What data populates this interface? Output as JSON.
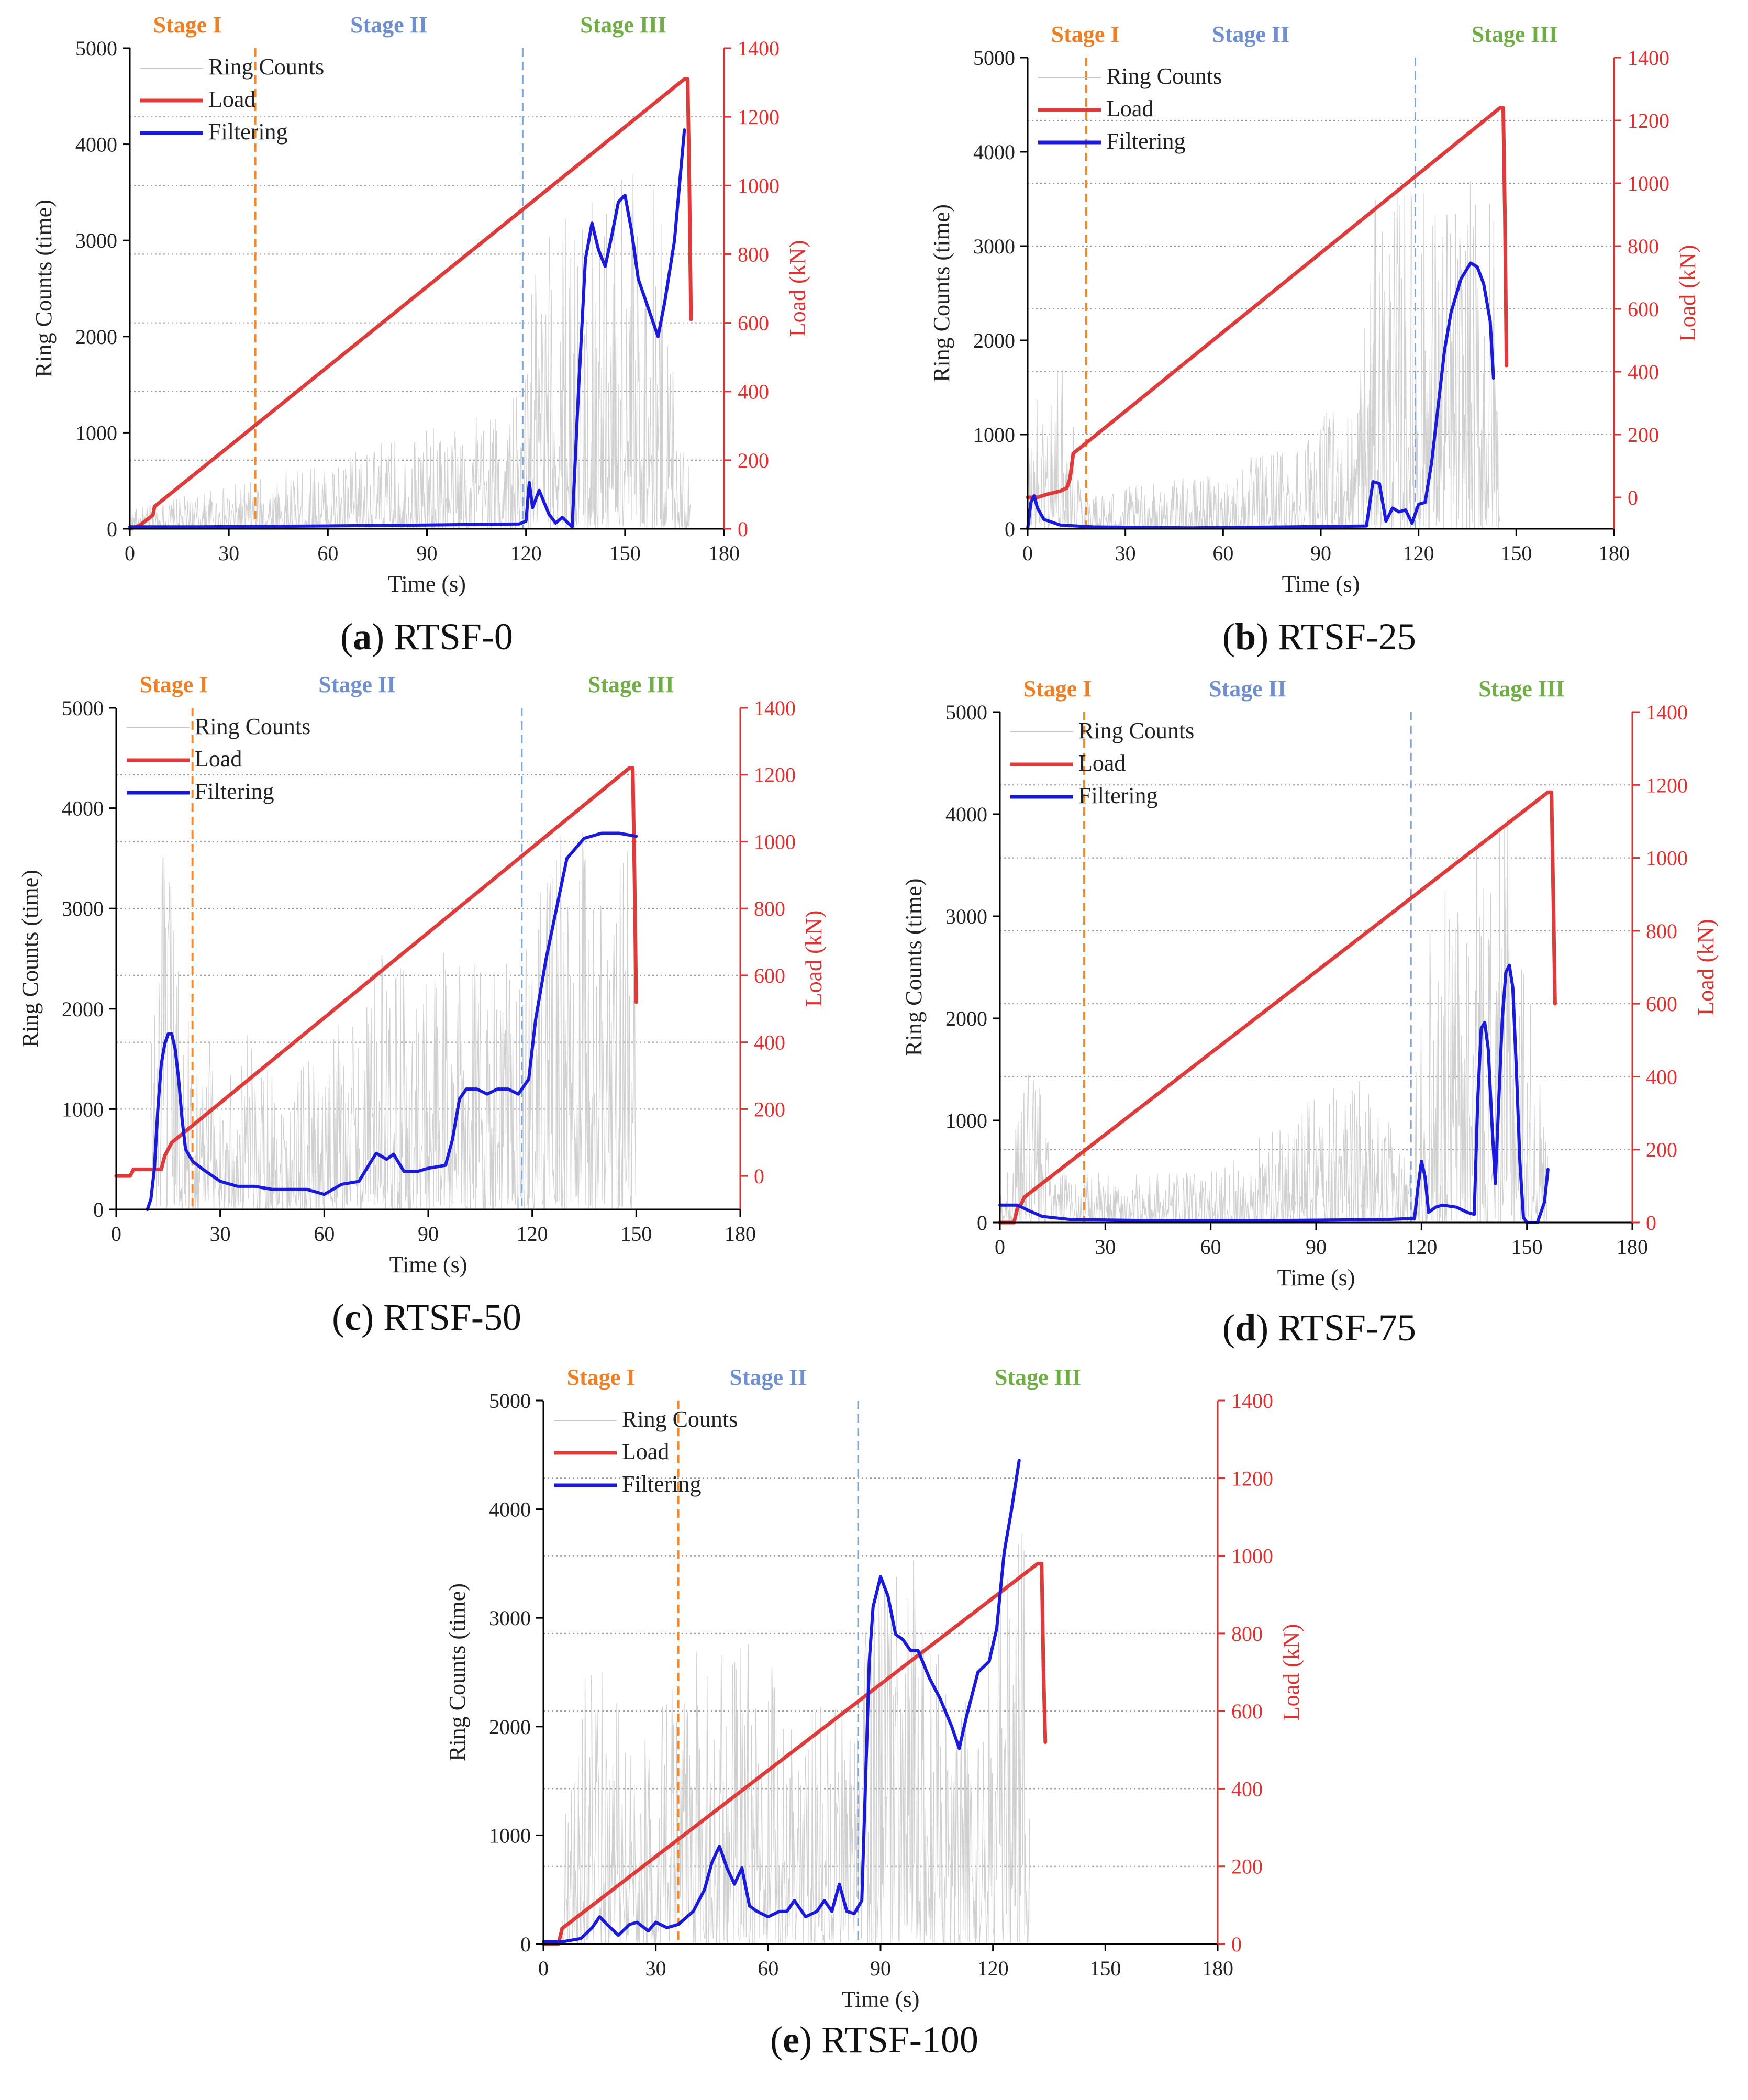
{
  "figure": {
    "legend": [
      "Ring Counts",
      "Load",
      "Filtering"
    ],
    "stage_labels": [
      "Stage I",
      "Stage II",
      "Stage III"
    ],
    "colors": {
      "ring_counts": "#c8c8c8",
      "load": "#e03b3b",
      "filtering": "#1a1adc",
      "stage1_line": "#ef8a2e",
      "stage2_line": "#7fa5d6",
      "stage1_text": "#ef7f25",
      "stage2_text": "#6f8fcf",
      "stage3_text": "#70ad47"
    }
  },
  "chart_data": [
    {
      "type": "line",
      "panel_letter": "a",
      "specimen": "RTSF-0",
      "xlabel": "Time (s)",
      "ylabel": "Ring Counts (time)",
      "y2label": "Load (kN)",
      "xlim": [
        0,
        180
      ],
      "ylim": [
        0,
        5000
      ],
      "y2lim": [
        0,
        1400
      ],
      "xticks": [
        0,
        30,
        60,
        90,
        120,
        150,
        180
      ],
      "yticks": [
        0,
        1000,
        2000,
        3000,
        4000,
        5000
      ],
      "y2ticks": [
        0,
        200,
        400,
        600,
        800,
        1000,
        1200,
        1400
      ],
      "stage_boundaries": [
        38,
        119
      ],
      "series": [
        {
          "name": "Load",
          "axis": "right",
          "x": [
            0,
            3,
            7,
            7.5,
            168,
            169,
            169.5,
            170
          ],
          "y": [
            0,
            10,
            40,
            65,
            1310,
            1310,
            1000,
            610
          ]
        },
        {
          "name": "Filtering",
          "axis": "left",
          "x": [
            0,
            20,
            60,
            90,
            118,
            120,
            121,
            122,
            124,
            127,
            129,
            131,
            134,
            136,
            138,
            140,
            142,
            144,
            146,
            148,
            150,
            152,
            154,
            157,
            160,
            162,
            165,
            168
          ],
          "y": [
            20,
            20,
            30,
            40,
            50,
            80,
            480,
            220,
            400,
            150,
            60,
            120,
            20,
            1500,
            2800,
            3180,
            2900,
            2730,
            3050,
            3400,
            3470,
            3100,
            2600,
            2300,
            2000,
            2350,
            3000,
            4150
          ]
        }
      ],
      "ring_counts_noise": {
        "x_range": [
          0,
          170
        ],
        "envelope": [
          [
            0,
            200
          ],
          [
            60,
            700
          ],
          [
            119,
            1400
          ],
          [
            122,
            2800
          ],
          [
            135,
            3600
          ],
          [
            150,
            4000
          ],
          [
            160,
            3600
          ],
          [
            170,
            400
          ]
        ]
      }
    },
    {
      "type": "line",
      "panel_letter": "b",
      "specimen": "RTSF-25",
      "xlabel": "Time (s)",
      "ylabel": "Ring Counts (time)",
      "y2label": "Load (kN)",
      "xlim": [
        0,
        180
      ],
      "ylim": [
        0,
        5000
      ],
      "y2lim": [
        -100,
        1400
      ],
      "xticks": [
        0,
        30,
        60,
        90,
        120,
        150,
        180
      ],
      "yticks": [
        0,
        1000,
        2000,
        3000,
        4000,
        5000
      ],
      "y2ticks": [
        0,
        200,
        400,
        600,
        800,
        1000,
        1200,
        1400
      ],
      "stage_boundaries": [
        18,
        119
      ],
      "series": [
        {
          "name": "Load",
          "axis": "right",
          "x": [
            0,
            3,
            6,
            10,
            12,
            13,
            14,
            145,
            146,
            146.5,
            147
          ],
          "y": [
            0,
            0,
            10,
            20,
            30,
            60,
            140,
            1240,
            1240,
            900,
            420
          ]
        },
        {
          "name": "Filtering",
          "axis": "left",
          "x": [
            0,
            1,
            2,
            3,
            5,
            10,
            20,
            50,
            80,
            104,
            106,
            108,
            110,
            112,
            114,
            116,
            118,
            120,
            122,
            124,
            126,
            128,
            130,
            133,
            136,
            138,
            140,
            142,
            143
          ],
          "y": [
            0,
            280,
            350,
            220,
            100,
            40,
            20,
            10,
            20,
            30,
            500,
            480,
            80,
            220,
            180,
            200,
            60,
            260,
            280,
            700,
            1300,
            1900,
            2300,
            2650,
            2820,
            2780,
            2600,
            2200,
            1600
          ]
        }
      ],
      "ring_counts_noise": {
        "x_range": [
          0,
          145
        ],
        "envelope": [
          [
            0,
            1200
          ],
          [
            10,
            1800
          ],
          [
            20,
            400
          ],
          [
            60,
            600
          ],
          [
            100,
            1400
          ],
          [
            107,
            3600
          ],
          [
            118,
            3800
          ],
          [
            130,
            3600
          ],
          [
            143,
            3800
          ],
          [
            145,
            800
          ]
        ]
      }
    },
    {
      "type": "line",
      "panel_letter": "c",
      "specimen": "RTSF-50",
      "xlabel": "Time (s)",
      "ylabel": "Ring Counts (time)",
      "y2label": "Load (kN)",
      "xlim": [
        0,
        180
      ],
      "ylim": [
        0,
        5000
      ],
      "y2lim": [
        -100,
        1400
      ],
      "xticks": [
        0,
        30,
        60,
        90,
        120,
        150,
        180
      ],
      "yticks": [
        0,
        1000,
        2000,
        3000,
        4000,
        5000
      ],
      "y2ticks": [
        0,
        200,
        400,
        600,
        800,
        1000,
        1200,
        1400
      ],
      "stage_boundaries": [
        22,
        117
      ],
      "series": [
        {
          "name": "Load",
          "axis": "right",
          "x": [
            0,
            4,
            5,
            13,
            14,
            16,
            148,
            149,
            149.5,
            150
          ],
          "y": [
            0,
            0,
            20,
            20,
            60,
            100,
            1220,
            1220,
            900,
            520
          ]
        },
        {
          "name": "Filtering",
          "axis": "left",
          "x": [
            9,
            10,
            11,
            12,
            13,
            14,
            15,
            16,
            17,
            18,
            19,
            20,
            22,
            25,
            30,
            35,
            40,
            45,
            50,
            55,
            60,
            65,
            70,
            73,
            75,
            78,
            80,
            83,
            87,
            90,
            95,
            97,
            99,
            101,
            104,
            107,
            110,
            113,
            116,
            119,
            121,
            124,
            127,
            130,
            135,
            140,
            145,
            150
          ],
          "y": [
            0,
            100,
            400,
            1000,
            1450,
            1650,
            1750,
            1750,
            1600,
            1300,
            900,
            600,
            480,
            400,
            280,
            230,
            230,
            200,
            200,
            200,
            150,
            250,
            280,
            450,
            560,
            500,
            550,
            380,
            380,
            410,
            440,
            700,
            1100,
            1200,
            1200,
            1150,
            1200,
            1200,
            1150,
            1300,
            1900,
            2500,
            3000,
            3500,
            3700,
            3750,
            3750,
            3720
          ]
        }
      ],
      "ring_counts_noise": {
        "x_range": [
          10,
          150
        ],
        "envelope": [
          [
            10,
            2800
          ],
          [
            14,
            3900
          ],
          [
            20,
            2000
          ],
          [
            30,
            1800
          ],
          [
            60,
            1600
          ],
          [
            75,
            2700
          ],
          [
            90,
            2400
          ],
          [
            100,
            2800
          ],
          [
            117,
            2400
          ],
          [
            125,
            3800
          ],
          [
            150,
            3800
          ]
        ]
      }
    },
    {
      "type": "line",
      "panel_letter": "d",
      "specimen": "RTSF-75",
      "xlabel": "Time (s)",
      "ylabel": "Ring Counts (time)",
      "y2label": "Load (kN)",
      "xlim": [
        0,
        180
      ],
      "ylim": [
        0,
        5000
      ],
      "y2lim": [
        0,
        1400
      ],
      "xticks": [
        0,
        30,
        60,
        90,
        120,
        150,
        180
      ],
      "yticks": [
        0,
        1000,
        2000,
        3000,
        4000,
        5000
      ],
      "y2ticks": [
        0,
        200,
        400,
        600,
        800,
        1000,
        1200,
        1400
      ],
      "stage_boundaries": [
        24,
        117
      ],
      "series": [
        {
          "name": "Load",
          "axis": "right",
          "x": [
            0,
            4,
            5,
            6,
            7,
            156,
            157,
            157.5,
            158
          ],
          "y": [
            0,
            0,
            40,
            50,
            70,
            1180,
            1180,
            900,
            600
          ]
        },
        {
          "name": "Filtering",
          "axis": "left",
          "x": [
            0,
            5,
            8,
            12,
            20,
            40,
            80,
            110,
            118,
            119,
            120,
            121,
            122,
            124,
            126,
            130,
            133,
            135,
            136,
            137,
            138,
            139,
            140,
            141,
            142,
            143,
            144,
            145,
            146,
            147,
            148,
            149,
            150,
            151,
            152,
            153,
            155,
            156
          ],
          "y": [
            170,
            170,
            120,
            60,
            30,
            20,
            20,
            30,
            40,
            350,
            600,
            450,
            100,
            150,
            170,
            150,
            100,
            80,
            1200,
            1900,
            1960,
            1700,
            1000,
            380,
            1200,
            2000,
            2450,
            2520,
            2300,
            1500,
            600,
            50,
            0,
            0,
            0,
            0,
            200,
            520
          ]
        }
      ],
      "ring_counts_noise": {
        "x_range": [
          0,
          156
        ],
        "envelope": [
          [
            0,
            300
          ],
          [
            10,
            1800
          ],
          [
            15,
            500
          ],
          [
            60,
            500
          ],
          [
            100,
            1500
          ],
          [
            117,
            700
          ],
          [
            120,
            3000
          ],
          [
            135,
            3800
          ],
          [
            145,
            4000
          ],
          [
            156,
            800
          ]
        ]
      }
    },
    {
      "type": "line",
      "panel_letter": "e",
      "specimen": "RTSF-100",
      "xlabel": "Time (s)",
      "ylabel": "Ring Counts (time)",
      "y2label": "Load (kN)",
      "xlim": [
        0,
        180
      ],
      "ylim": [
        0,
        5000
      ],
      "y2lim": [
        0,
        1400
      ],
      "xticks": [
        0,
        30,
        60,
        90,
        120,
        150,
        180
      ],
      "yticks": [
        0,
        1000,
        2000,
        3000,
        4000,
        5000
      ],
      "y2ticks": [
        0,
        200,
        400,
        600,
        800,
        1000,
        1200,
        1400
      ],
      "stage_boundaries": [
        36,
        84
      ],
      "series": [
        {
          "name": "Load",
          "axis": "right",
          "x": [
            0,
            4,
            5,
            132,
            133,
            133.5,
            134
          ],
          "y": [
            0,
            0,
            40,
            980,
            980,
            700,
            520
          ]
        },
        {
          "name": "Filtering",
          "axis": "left",
          "x": [
            0,
            5,
            10,
            13,
            15,
            17,
            20,
            23,
            25,
            28,
            30,
            33,
            36,
            40,
            43,
            45,
            47,
            49,
            51,
            53,
            55,
            57,
            60,
            63,
            65,
            67,
            70,
            73,
            75,
            77,
            79,
            81,
            83,
            85,
            86,
            87,
            88,
            90,
            92,
            94,
            96,
            98,
            100,
            103,
            106,
            109,
            111,
            113,
            116,
            119,
            121,
            123,
            125,
            127
          ],
          "y": [
            20,
            20,
            50,
            150,
            250,
            180,
            80,
            180,
            200,
            120,
            200,
            150,
            180,
            300,
            500,
            750,
            900,
            700,
            550,
            700,
            350,
            300,
            250,
            300,
            300,
            400,
            250,
            300,
            400,
            300,
            550,
            300,
            280,
            400,
            1500,
            2600,
            3100,
            3380,
            3200,
            2850,
            2800,
            2700,
            2700,
            2450,
            2250,
            2000,
            1800,
            2100,
            2500,
            2600,
            2900,
            3600,
            4000,
            4450
          ]
        }
      ],
      "ring_counts_noise": {
        "x_range": [
          5,
          130
        ],
        "envelope": [
          [
            5,
            1200
          ],
          [
            12,
            2800
          ],
          [
            25,
            1800
          ],
          [
            40,
            2800
          ],
          [
            50,
            3000
          ],
          [
            60,
            2600
          ],
          [
            75,
            2300
          ],
          [
            84,
            2000
          ],
          [
            88,
            4000
          ],
          [
            100,
            3500
          ],
          [
            110,
            2000
          ],
          [
            120,
            3000
          ],
          [
            130,
            4500
          ]
        ]
      }
    }
  ],
  "captions": [
    {
      "letter": "a",
      "specimen": "RTSF-0"
    },
    {
      "letter": "b",
      "specimen": "RTSF-25"
    },
    {
      "letter": "c",
      "specimen": "RTSF-50"
    },
    {
      "letter": "d",
      "specimen": "RTSF-75"
    },
    {
      "letter": "e",
      "specimen": "RTSF-100"
    }
  ],
  "caption_brackets": {
    "open": "(",
    "close": ")"
  }
}
